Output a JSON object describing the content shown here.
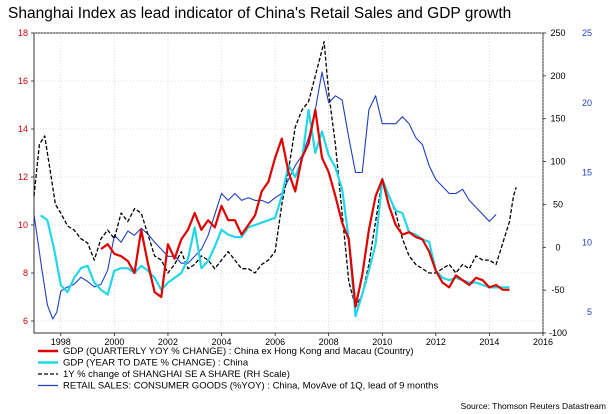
{
  "chart_data": {
    "type": "line",
    "title": "Shanghai Index as lead indicator of China's Retail Sales and GDP growth",
    "source": "Source: Thomson Reuters Datastream",
    "xlim": [
      1997.0,
      2016.0
    ],
    "x_ticks": [
      1998,
      2000,
      2002,
      2004,
      2006,
      2008,
      2010,
      2012,
      2014,
      2016
    ],
    "y_left": {
      "ylim": [
        5.5,
        18
      ],
      "ticks": [
        6,
        8,
        10,
        12,
        14,
        16,
        18
      ],
      "color": "#cc0000"
    },
    "y_right1": {
      "ylim": [
        -100,
        250
      ],
      "ticks": [
        -100,
        -50,
        0,
        50,
        100,
        150,
        200,
        250
      ],
      "color": "#000000"
    },
    "y_right2": {
      "ylim": [
        3.5,
        25
      ],
      "ticks": [
        5,
        10,
        15,
        20,
        25
      ],
      "color": "#1f3fbf"
    },
    "grid": true,
    "legend_position": "bottom",
    "series": [
      {
        "name": "GDP (QUARTERLY YOY % CHANGE) : China ex Hong Kong and Macau (Country)",
        "axis": "left",
        "color": "#e00000",
        "style": "solid",
        "width": 2.2,
        "x": [
          1999.5,
          1999.75,
          2000.0,
          2000.25,
          2000.5,
          2000.75,
          2001.0,
          2001.25,
          2001.5,
          2001.75,
          2002.0,
          2002.25,
          2002.5,
          2002.75,
          2003.0,
          2003.25,
          2003.5,
          2003.75,
          2004.0,
          2004.25,
          2004.5,
          2004.75,
          2005.0,
          2005.25,
          2005.5,
          2005.75,
          2006.0,
          2006.25,
          2006.5,
          2006.75,
          2007.0,
          2007.25,
          2007.5,
          2007.75,
          2008.0,
          2008.25,
          2008.5,
          2008.75,
          2009.0,
          2009.25,
          2009.5,
          2009.75,
          2010.0,
          2010.25,
          2010.5,
          2010.75,
          2011.0,
          2011.25,
          2011.5,
          2011.75,
          2012.0,
          2012.25,
          2012.5,
          2012.75,
          2013.0,
          2013.25,
          2013.5,
          2013.75,
          2014.0,
          2014.25,
          2014.5,
          2014.75
        ],
        "y": [
          9.0,
          9.2,
          8.8,
          8.7,
          8.5,
          8.0,
          9.8,
          8.4,
          7.2,
          7.0,
          9.2,
          8.6,
          9.4,
          9.8,
          10.5,
          9.8,
          10.2,
          9.9,
          10.8,
          10.2,
          10.2,
          9.6,
          10.0,
          10.4,
          11.4,
          11.8,
          12.8,
          13.6,
          12.2,
          11.4,
          12.8,
          13.4,
          14.8,
          12.8,
          12.2,
          11.2,
          10.1,
          9.4,
          6.6,
          7.9,
          9.8,
          11.2,
          11.9,
          10.8,
          10.0,
          9.6,
          9.7,
          9.5,
          9.4,
          8.9,
          8.1,
          7.6,
          7.4,
          7.9,
          7.7,
          7.5,
          7.8,
          7.7,
          7.4,
          7.5,
          7.3,
          7.3
        ]
      },
      {
        "name": "GDP (YEAR TO DATE % CHANGE) : China",
        "axis": "left",
        "color": "#22d8e8",
        "style": "solid",
        "width": 2.2,
        "x": [
          1997.25,
          1997.5,
          1997.75,
          1998.0,
          1998.25,
          1998.5,
          1998.75,
          1999.0,
          1999.25,
          1999.5,
          1999.75,
          2000.0,
          2000.25,
          2000.5,
          2000.75,
          2001.0,
          2001.25,
          2001.5,
          2001.75,
          2002.0,
          2002.25,
          2002.5,
          2002.75,
          2003.0,
          2003.25,
          2003.5,
          2003.75,
          2004.0,
          2004.25,
          2004.5,
          2004.75,
          2005.0,
          2005.25,
          2005.5,
          2005.75,
          2006.0,
          2006.25,
          2006.5,
          2006.75,
          2007.0,
          2007.25,
          2007.5,
          2007.75,
          2008.0,
          2008.25,
          2008.5,
          2008.75,
          2009.0,
          2009.25,
          2009.5,
          2009.75,
          2010.0,
          2010.25,
          2010.5,
          2010.75,
          2011.0,
          2011.25,
          2011.5,
          2011.75,
          2012.0,
          2012.25,
          2012.5,
          2012.75,
          2013.0,
          2013.25,
          2013.5,
          2013.75,
          2014.0,
          2014.25,
          2014.5,
          2014.75
        ],
        "y": [
          10.4,
          10.2,
          9.0,
          7.5,
          7.2,
          7.8,
          8.2,
          8.3,
          7.6,
          7.3,
          7.1,
          8.1,
          8.2,
          8.2,
          8.0,
          8.3,
          8.1,
          7.8,
          7.3,
          7.6,
          7.8,
          8.0,
          8.6,
          9.9,
          8.2,
          8.5,
          9.1,
          9.8,
          9.6,
          9.5,
          9.5,
          9.9,
          10.0,
          10.1,
          10.2,
          10.3,
          11.2,
          12.5,
          12.0,
          12.7,
          14.8,
          13.0,
          13.9,
          12.9,
          12.4,
          11.5,
          9.4,
          6.2,
          7.1,
          8.1,
          9.2,
          11.9,
          11.2,
          10.6,
          10.5,
          9.7,
          9.6,
          9.4,
          9.3,
          8.1,
          7.8,
          7.7,
          7.8,
          7.7,
          7.6,
          7.6,
          7.5,
          7.4,
          7.4,
          7.4,
          7.4
        ]
      },
      {
        "name": "1Y % change of SHANGHAI SE A SHARE (RH Scale)",
        "axis": "right1",
        "color": "#000000",
        "style": "dashed",
        "width": 1.3,
        "x": [
          1997.0,
          1997.2,
          1997.4,
          1997.6,
          1997.8,
          1998.0,
          1998.25,
          1998.5,
          1998.75,
          1999.0,
          1999.25,
          1999.5,
          1999.75,
          2000.0,
          2000.25,
          2000.5,
          2000.75,
          2001.0,
          2001.25,
          2001.5,
          2001.75,
          2002.0,
          2002.25,
          2002.5,
          2002.75,
          2003.0,
          2003.25,
          2003.5,
          2003.75,
          2004.0,
          2004.25,
          2004.5,
          2004.75,
          2005.0,
          2005.25,
          2005.5,
          2005.75,
          2006.0,
          2006.25,
          2006.5,
          2006.75,
          2007.0,
          2007.25,
          2007.5,
          2007.75,
          2007.83,
          2008.0,
          2008.25,
          2008.5,
          2008.75,
          2009.0,
          2009.25,
          2009.5,
          2009.75,
          2010.0,
          2010.25,
          2010.5,
          2010.75,
          2011.0,
          2011.25,
          2011.5,
          2011.75,
          2012.0,
          2012.25,
          2012.5,
          2012.75,
          2013.0,
          2013.25,
          2013.5,
          2013.75,
          2014.0,
          2014.25,
          2014.5,
          2014.75,
          2014.9,
          2015.0
        ],
        "y": [
          60,
          120,
          130,
          90,
          50,
          40,
          25,
          20,
          10,
          5,
          -15,
          10,
          20,
          10,
          40,
          30,
          45,
          40,
          15,
          -10,
          -15,
          -30,
          -20,
          -5,
          -25,
          -20,
          -10,
          -15,
          -25,
          -15,
          -5,
          -15,
          -25,
          -25,
          -30,
          -20,
          -15,
          -5,
          50,
          90,
          140,
          160,
          170,
          200,
          230,
          240,
          180,
          120,
          40,
          -40,
          -70,
          -55,
          -20,
          30,
          80,
          60,
          40,
          10,
          -10,
          -20,
          -25,
          -30,
          -30,
          -25,
          -20,
          -30,
          -20,
          -25,
          -10,
          -15,
          -15,
          -20,
          5,
          30,
          60,
          70
        ]
      },
      {
        "name": "RETAIL SALES: CONSUMER GOODS (%YOY) : China,  MovAve of 1Q, lead of 9 months",
        "axis": "right2",
        "color": "#1f3fbf",
        "style": "solid",
        "width": 1.1,
        "x": [
          1997.0,
          1997.15,
          1997.3,
          1997.5,
          1997.7,
          1997.85,
          1998.0,
          1998.25,
          1998.5,
          1998.75,
          1999.0,
          1999.25,
          1999.5,
          1999.75,
          2000.0,
          2000.25,
          2000.5,
          2000.75,
          2001.0,
          2001.25,
          2001.5,
          2001.75,
          2002.0,
          2002.25,
          2002.5,
          2002.75,
          2003.0,
          2003.25,
          2003.5,
          2003.75,
          2004.0,
          2004.25,
          2004.5,
          2004.75,
          2005.0,
          2005.25,
          2005.5,
          2005.75,
          2006.0,
          2006.25,
          2006.5,
          2006.75,
          2007.0,
          2007.25,
          2007.5,
          2007.75,
          2008.0,
          2008.25,
          2008.5,
          2008.75,
          2009.0,
          2009.25,
          2009.5,
          2009.75,
          2010.0,
          2010.25,
          2010.5,
          2010.75,
          2011.0,
          2011.25,
          2011.5,
          2011.75,
          2012.0,
          2012.25,
          2012.5,
          2012.75,
          2013.0,
          2013.25,
          2013.5,
          2013.75,
          2014.0,
          2014.25
        ],
        "y": [
          12.0,
          10.0,
          8.0,
          5.5,
          4.5,
          5.0,
          6.5,
          6.8,
          7.0,
          7.5,
          7.2,
          6.8,
          7.0,
          8.0,
          10.5,
          10.0,
          10.8,
          10.5,
          11.0,
          10.6,
          10.0,
          9.5,
          9.0,
          9.0,
          8.5,
          8.5,
          9.0,
          9.5,
          10.5,
          12.0,
          13.5,
          13.0,
          13.5,
          13.0,
          13.2,
          13.0,
          13.0,
          12.8,
          13.2,
          13.5,
          14.5,
          15.5,
          16.2,
          17.5,
          19.5,
          22.2,
          20.0,
          20.5,
          20.2,
          17.5,
          15.0,
          15.0,
          19.5,
          20.5,
          18.5,
          18.5,
          18.5,
          19.0,
          18.5,
          17.5,
          17.0,
          15.5,
          14.5,
          14.0,
          13.5,
          13.5,
          13.8,
          13.0,
          12.5,
          12.0,
          11.5,
          12.0
        ]
      }
    ]
  }
}
